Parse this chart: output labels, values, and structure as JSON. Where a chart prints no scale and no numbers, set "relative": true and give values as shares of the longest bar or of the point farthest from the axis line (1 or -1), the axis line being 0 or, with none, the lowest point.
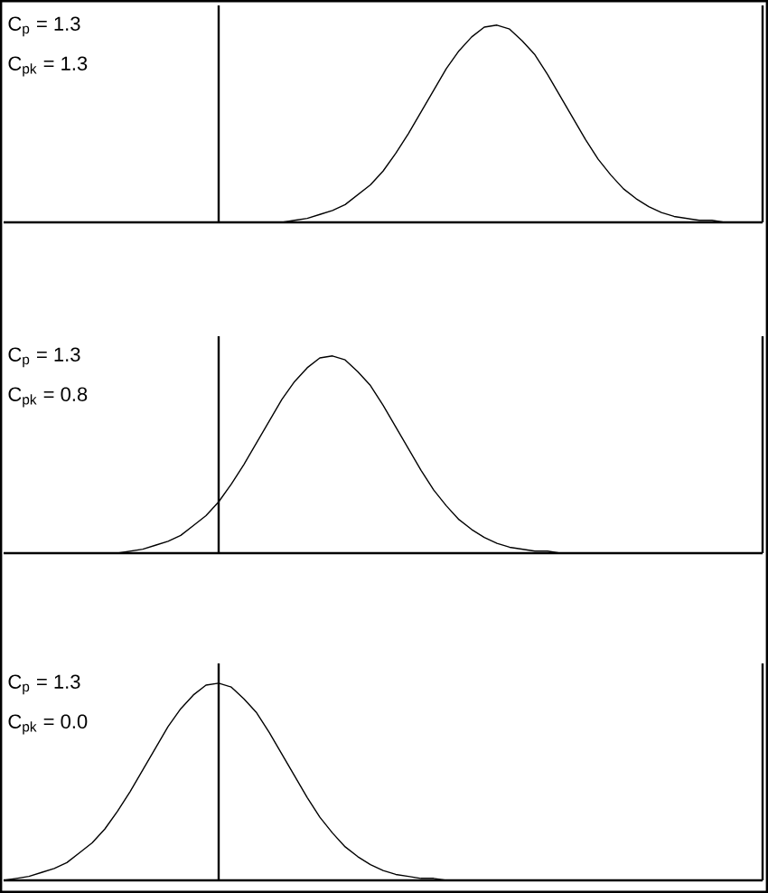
{
  "chart_data": [
    {
      "type": "line",
      "relative": true,
      "color": "#000000",
      "categories": [
        null,
        null,
        null,
        null,
        null,
        null,
        null,
        null,
        null,
        null,
        null,
        null,
        null,
        null,
        null,
        null,
        null,
        null,
        null,
        null,
        null,
        null,
        null,
        null,
        null,
        null,
        null,
        null,
        null,
        null,
        null,
        null,
        null,
        null,
        null,
        null,
        null,
        null,
        null,
        null,
        null,
        null,
        null,
        null,
        null,
        null,
        null,
        null,
        null,
        null,
        null,
        null,
        null,
        null,
        null,
        null,
        null,
        null,
        null,
        null,
        null
      ],
      "values": [
        0,
        0,
        0,
        0,
        0,
        0,
        0,
        0,
        0,
        0,
        0,
        0,
        0,
        0,
        0,
        0,
        0,
        0,
        0,
        0,
        0,
        0,
        0,
        0.01,
        0.02,
        0.04,
        0.06,
        0.09,
        0.14,
        0.19,
        0.26,
        0.35,
        0.45,
        0.56,
        0.67,
        0.78,
        0.87,
        0.94,
        0.99,
        1,
        0.98,
        0.92,
        0.85,
        0.75,
        0.64,
        0.53,
        0.42,
        0.32,
        0.24,
        0.17,
        0.12,
        0.08,
        0.05,
        0.03,
        0.02,
        0.01,
        0.01,
        0,
        0,
        0,
        0
      ],
      "annotations": [
        "C$_{p}$ = 1.3",
        "C$_{pk}$ = 1.3"
      ]
    },
    {
      "type": "line",
      "relative": true,
      "color": "#000000",
      "categories": [
        null,
        null,
        null,
        null,
        null,
        null,
        null,
        null,
        null,
        null,
        null,
        null,
        null,
        null,
        null,
        null,
        null,
        null,
        null,
        null,
        null,
        null,
        null,
        null,
        null,
        null,
        null,
        null,
        null,
        null,
        null,
        null,
        null,
        null,
        null,
        null,
        null,
        null,
        null,
        null,
        null,
        null,
        null,
        null,
        null,
        null,
        null,
        null,
        null,
        null,
        null,
        null,
        null,
        null,
        null,
        null,
        null,
        null,
        null,
        null,
        null
      ],
      "values": [
        0,
        0,
        0,
        0,
        0,
        0,
        0,
        0,
        0,
        0,
        0.01,
        0.02,
        0.04,
        0.06,
        0.09,
        0.14,
        0.19,
        0.26,
        0.35,
        0.45,
        0.56,
        0.67,
        0.78,
        0.87,
        0.94,
        0.99,
        1,
        0.98,
        0.92,
        0.85,
        0.75,
        0.64,
        0.53,
        0.42,
        0.32,
        0.24,
        0.17,
        0.12,
        0.08,
        0.05,
        0.03,
        0.02,
        0.01,
        0.01,
        0,
        0,
        0,
        0,
        0,
        0,
        0,
        0,
        0,
        0,
        0,
        0,
        0,
        0,
        0,
        0,
        0
      ],
      "annotations": [
        "C$_{p}$ = 1.3",
        "C$_{pk}$ = 0.8"
      ]
    },
    {
      "type": "line",
      "relative": true,
      "color": "#000000",
      "categories": [
        null,
        null,
        null,
        null,
        null,
        null,
        null,
        null,
        null,
        null,
        null,
        null,
        null,
        null,
        null,
        null,
        null,
        null,
        null,
        null,
        null,
        null,
        null,
        null,
        null,
        null,
        null,
        null,
        null,
        null,
        null,
        null,
        null,
        null,
        null,
        null,
        null,
        null,
        null,
        null,
        null,
        null,
        null,
        null,
        null,
        null,
        null,
        null,
        null,
        null,
        null,
        null,
        null,
        null,
        null,
        null,
        null,
        null,
        null,
        null,
        null
      ],
      "values": [
        0,
        0.01,
        0.02,
        0.04,
        0.06,
        0.09,
        0.14,
        0.19,
        0.26,
        0.35,
        0.45,
        0.56,
        0.67,
        0.78,
        0.87,
        0.94,
        0.99,
        1,
        0.98,
        0.92,
        0.85,
        0.75,
        0.64,
        0.53,
        0.42,
        0.32,
        0.24,
        0.17,
        0.12,
        0.08,
        0.05,
        0.03,
        0.02,
        0.01,
        0.01,
        0,
        0,
        0,
        0,
        0,
        0,
        0,
        0,
        0,
        0,
        0,
        0,
        0,
        0,
        0,
        0,
        0,
        0,
        0,
        0,
        0,
        0,
        0,
        0,
        0,
        0
      ],
      "annotations": [
        "C$_{p}$ = 1.3",
        "C$_{pk}$ = 0.0"
      ]
    }
  ]
}
